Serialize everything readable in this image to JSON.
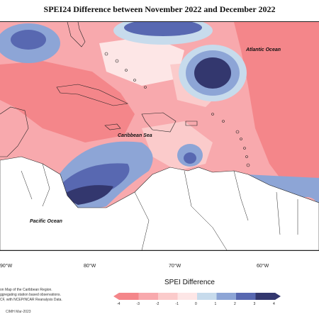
{
  "title": "SPEI24 Difference between November 2022 and December 2022",
  "labels": {
    "atlantic": "Atlantic Ocean",
    "caribbean": "Caribbean Sea",
    "pacific": "Pacific Ocean"
  },
  "longitudes": [
    "90°W",
    "80°W",
    "70°W",
    "60°W"
  ],
  "credits": [
    "on Map of the Caribbean Region.",
    "ggregating station based observations.",
    "CF, with NCEP/NCAR Reanalysis Data."
  ],
  "colorbar": {
    "title": "SPEI Difference",
    "ticks": [
      "-4",
      "-3",
      "-2",
      "-1",
      "0",
      "1",
      "2",
      "3",
      "4"
    ],
    "colors": [
      "#f4868a",
      "#f8a9ad",
      "#fbcbcb",
      "#fde6e6",
      "#ffffff",
      "#c7dbec",
      "#8da5d6",
      "#5868b1",
      "#33376e"
    ]
  },
  "stamp": "CIMH Mar-2023"
}
